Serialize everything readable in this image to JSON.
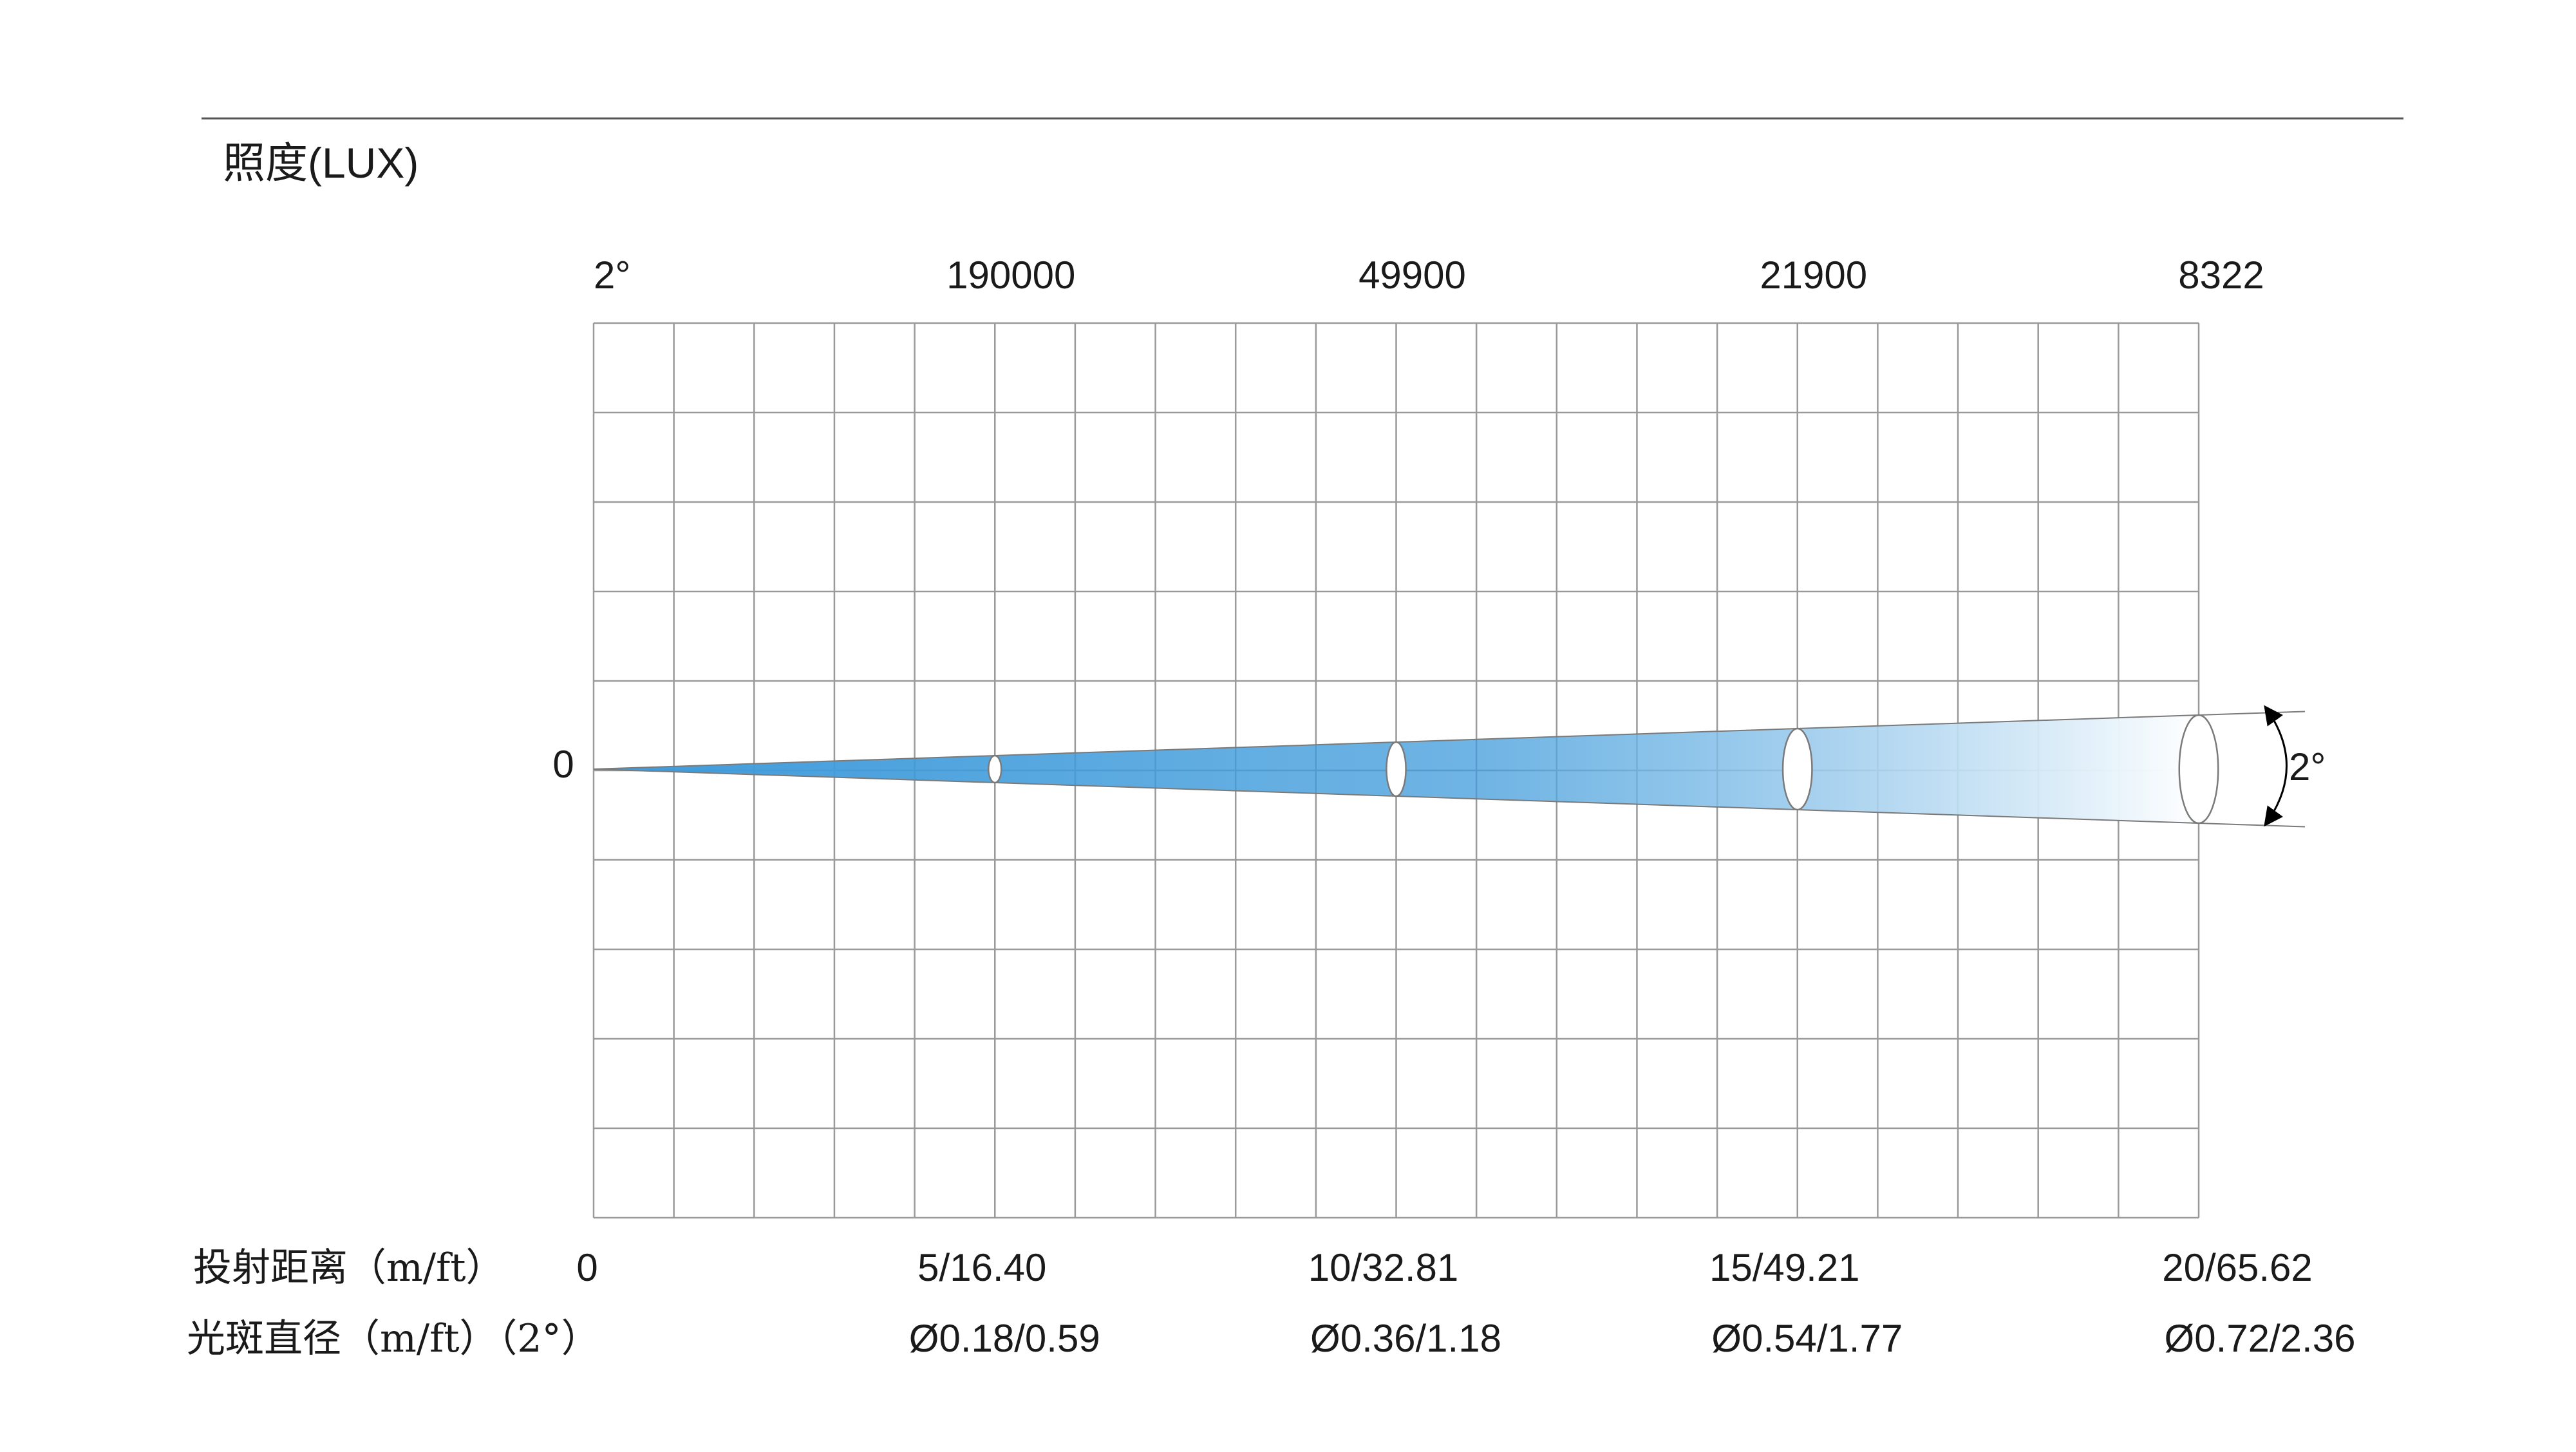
{
  "header": {
    "title": "照度(LUX)"
  },
  "chart_data": {
    "type": "area",
    "beam_angle_label": "2°",
    "zero_label": "0",
    "distance_row_label": "投射距离（m/ft）",
    "diameter_row_label": "光斑直径（m/ft）（2°）",
    "distance_start": "0",
    "beam_angle_deg": 2,
    "distance_max_m": 20,
    "points": [
      {
        "distance_m": 5,
        "lux": "190000",
        "distance_label": "5/16.40",
        "diameter_label": "Ø0.18/0.59",
        "diameter_m": 0.18
      },
      {
        "distance_m": 10,
        "lux": "49900",
        "distance_label": "10/32.81",
        "diameter_label": "Ø0.36/1.18",
        "diameter_m": 0.36
      },
      {
        "distance_m": 15,
        "lux": "21900",
        "distance_label": "15/49.21",
        "diameter_label": "Ø0.54/1.77",
        "diameter_m": 0.54
      },
      {
        "distance_m": 20,
        "lux": "8322",
        "distance_label": "20/65.62",
        "diameter_label": "Ø0.72/2.36",
        "diameter_m": 0.72
      }
    ],
    "colors": {
      "beam_start": "#3f9bdb",
      "beam_end": "#ffffff",
      "grid": "#9a9a9a",
      "outline": "#7a7a7a"
    },
    "grid": true
  }
}
